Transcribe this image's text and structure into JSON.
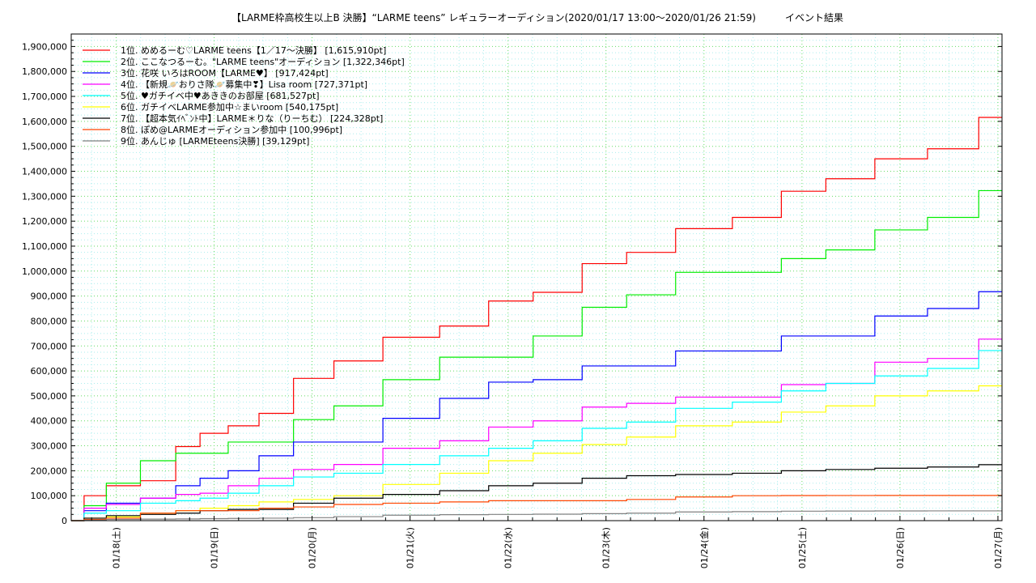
{
  "chart_data": {
    "type": "line",
    "title": "【LARME枠高校生以上B 決勝】“LARME teens” レギュラーオーディション(2020/01/17 13:00〜2020/01/26 21:59)　　　イベント結果",
    "xlabel": "",
    "ylabel": "",
    "x_unit": "hours since 2020/01/17 13:00",
    "xlim": [
      0,
      228
    ],
    "ylim": [
      0,
      1950000
    ],
    "yticks": [
      0,
      100000,
      200000,
      300000,
      400000,
      500000,
      600000,
      700000,
      800000,
      900000,
      1000000,
      1100000,
      1200000,
      1300000,
      1400000,
      1500000,
      1600000,
      1700000,
      1800000,
      1900000
    ],
    "ytick_labels": [
      "0",
      "100,000",
      "200,000",
      "300,000",
      "400,000",
      "500,000",
      "600,000",
      "700,000",
      "800,000",
      "900,000",
      "1,000,000",
      "1,100,000",
      "1,200,000",
      "1,300,000",
      "1,400,000",
      "1,500,000",
      "1,600,000",
      "1,700,000",
      "1,800,000",
      "1,900,000"
    ],
    "xticks": [
      11,
      35,
      59,
      83,
      107,
      131,
      155,
      179,
      203,
      227
    ],
    "xtick_labels": [
      "01/18(土)",
      "01/19(日)",
      "01/20(月)",
      "01/21(火)",
      "01/22(水)",
      "01/23(木)",
      "01/24(金)",
      "01/25(土)",
      "01/26(日)",
      "01/27(月)"
    ],
    "grid": true,
    "legend_position": "top-left",
    "x": [
      0,
      6.3,
      10.9,
      23,
      28.2,
      34.9,
      42,
      50,
      58.9,
      69.8,
      82.9,
      97.6,
      106.9,
      119.4,
      130.9,
      141.2,
      154.9,
      169,
      178.9,
      190.8,
      202.9,
      216.6,
      228
    ],
    "series": [
      {
        "name": "1位. めめるーむ♡LARME teens【1／17〜決勝】 [1,615,910pt]",
        "color": "#ff0000",
        "values": [
          0,
          100000,
          140000,
          160000,
          297000,
          350000,
          380000,
          430000,
          570000,
          640000,
          735000,
          780000,
          880000,
          915000,
          1030000,
          1075000,
          1170000,
          1215000,
          1320000,
          1370000,
          1450000,
          1490000,
          1615910
        ]
      },
      {
        "name": "2位. ここなつるーむ。\"LARME teens\"オーディション [1,322,346pt]",
        "color": "#00ee00",
        "values": [
          0,
          60000,
          150000,
          240000,
          270000,
          270000,
          315000,
          315000,
          405000,
          460000,
          565000,
          655000,
          655000,
          740000,
          855000,
          905000,
          995000,
          995000,
          1050000,
          1085000,
          1165000,
          1215000,
          1322346
        ]
      },
      {
        "name": "3位. 花咲 いろはROOM【LARME♥】 [917,424pt]",
        "color": "#0000ff",
        "values": [
          0,
          40000,
          70000,
          90000,
          140000,
          170000,
          200000,
          260000,
          315000,
          315000,
          410000,
          490000,
          555000,
          565000,
          620000,
          620000,
          680000,
          680000,
          740000,
          740000,
          820000,
          850000,
          917424
        ]
      },
      {
        "name": "4位. 【新規🪐おりさ隊🪐募集中❣】Lisa room [727,371pt]",
        "color": "#ff00ff",
        "values": [
          0,
          50000,
          65000,
          90000,
          105000,
          110000,
          140000,
          170000,
          205000,
          225000,
          290000,
          320000,
          375000,
          400000,
          455000,
          470000,
          495000,
          495000,
          545000,
          550000,
          635000,
          650000,
          727371
        ]
      },
      {
        "name": "5位. ♥ガチイベ中♥あききのお部屋 [681,527pt]",
        "color": "#00ffff",
        "values": [
          0,
          30000,
          40000,
          70000,
          80000,
          90000,
          110000,
          140000,
          175000,
          190000,
          225000,
          260000,
          290000,
          320000,
          370000,
          395000,
          450000,
          475000,
          520000,
          550000,
          580000,
          610000,
          681527
        ]
      },
      {
        "name": "6位. ガチイベLARME参加中☆まいroom [540,175pt]",
        "color": "#ffff00",
        "values": [
          0,
          10000,
          15000,
          30000,
          40000,
          50000,
          60000,
          75000,
          85000,
          100000,
          145000,
          190000,
          240000,
          270000,
          305000,
          335000,
          380000,
          395000,
          435000,
          460000,
          500000,
          520000,
          540175
        ]
      },
      {
        "name": "7位. 【超本気ｲﾍﾞﾝﾄ中】LARME＊りな（りーちむ） [224,328pt]",
        "color": "#000000",
        "values": [
          0,
          10000,
          20000,
          25000,
          30000,
          40000,
          45000,
          45000,
          70000,
          90000,
          105000,
          120000,
          140000,
          150000,
          170000,
          180000,
          185000,
          190000,
          200000,
          205000,
          210000,
          215000,
          224328
        ]
      },
      {
        "name": "8位. ぽめ@LARMEオーディション参加中 [100,996pt]",
        "color": "#ff4500",
        "values": [
          0,
          5000,
          10000,
          30000,
          40000,
          40000,
          40000,
          50000,
          55000,
          65000,
          70000,
          75000,
          80000,
          80000,
          80000,
          85000,
          95000,
          100000,
          100500,
          100800,
          100996,
          100996,
          100996
        ]
      },
      {
        "name": "9位. あんじゅ [LARMEteens決勝] [39,129pt]",
        "color": "#808080",
        "values": [
          0,
          2000,
          5000,
          6000,
          7000,
          8000,
          9000,
          10000,
          12000,
          16000,
          22000,
          24000,
          25000,
          26000,
          28000,
          30000,
          35000,
          36000,
          38000,
          38500,
          39000,
          39100,
          39129
        ]
      }
    ]
  }
}
